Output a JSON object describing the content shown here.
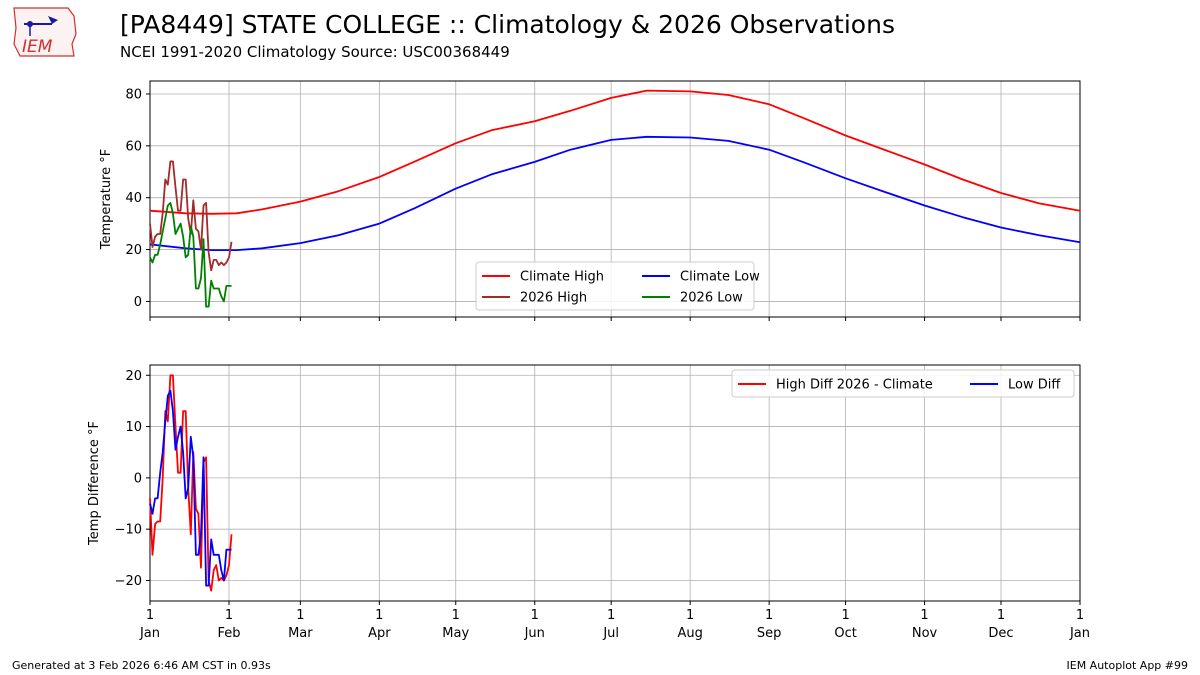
{
  "header": {
    "title": "[PA8449] STATE COLLEGE :: Climatology & 2026 Observations",
    "subtitle": "NCEI 1991-2020 Climatology Source: USC00368449",
    "logo_text": "IEM"
  },
  "footer": {
    "generated": "Generated at 3 Feb 2026 6:46 AM CST in 0.93s",
    "app": "IEM Autoplot App #99"
  },
  "colors": {
    "climate_high": "#ff0000",
    "climate_low": "#0000ff",
    "obs_high": "#a52a2a",
    "obs_low": "#008000",
    "grid": "#b0b0b0"
  },
  "chart_data": [
    {
      "type": "line",
      "ylabel": "Temperature °F",
      "xlim": [
        1,
        366
      ],
      "ylim": [
        -6,
        85
      ],
      "yticks": [
        0,
        20,
        40,
        60,
        80
      ],
      "x_tick_days": [
        1,
        32,
        60,
        91,
        121,
        152,
        182,
        213,
        244,
        274,
        305,
        335,
        366
      ],
      "x_tick_labels": [
        "1\nJan",
        "1\nFeb",
        "1\nMar",
        "1\nApr",
        "1\nMay",
        "1\nJun",
        "1\nJul",
        "1\nAug",
        "1\nSep",
        "1\nOct",
        "1\nNov",
        "1\nDec",
        "1\nJan"
      ],
      "grid": true,
      "legend": {
        "position": "lower-center",
        "columns": 2
      },
      "series": [
        {
          "name": "Climate High",
          "key": "climate_high",
          "x": [
            1,
            15,
            25,
            35,
            45,
            60,
            75,
            91,
            105,
            121,
            135,
            152,
            166,
            182,
            196,
            213,
            228,
            244,
            258,
            274,
            290,
            305,
            320,
            335,
            350,
            366
          ],
          "y": [
            35,
            34,
            33.8,
            34,
            35.5,
            38.5,
            42.5,
            48,
            54,
            61,
            66,
            69.5,
            73.5,
            78.5,
            81.3,
            81,
            79.6,
            76,
            70.5,
            64,
            58.2,
            52.8,
            47,
            41.8,
            37.8,
            35
          ]
        },
        {
          "name": "Climate Low",
          "key": "climate_low",
          "x": [
            1,
            15,
            25,
            35,
            45,
            60,
            75,
            91,
            105,
            121,
            135,
            152,
            166,
            182,
            196,
            213,
            228,
            244,
            258,
            274,
            290,
            305,
            320,
            335,
            350,
            366
          ],
          "y": [
            22,
            20.5,
            19.8,
            19.8,
            20.5,
            22.5,
            25.5,
            30,
            36,
            43.5,
            49,
            53.8,
            58.5,
            62.3,
            63.5,
            63.2,
            61.9,
            58.5,
            53.5,
            47.5,
            42,
            37,
            32.5,
            28.5,
            25.5,
            22.8
          ]
        },
        {
          "name": "2026 High",
          "key": "obs_high",
          "x": [
            1,
            2,
            3,
            4,
            5,
            6,
            7,
            8,
            9,
            10,
            11,
            12,
            13,
            14,
            15,
            16,
            17,
            18,
            19,
            20,
            21,
            22,
            23,
            24,
            25,
            26,
            27,
            28,
            29,
            30,
            31,
            32,
            33
          ],
          "y": [
            30,
            21,
            25,
            26,
            26,
            34,
            47,
            45,
            54,
            54,
            44,
            35,
            35,
            47,
            47,
            32,
            26,
            39,
            28,
            27,
            20,
            37,
            38,
            19,
            12,
            16,
            16,
            14,
            15,
            14,
            15,
            17,
            23
          ]
        },
        {
          "name": "2026 Low",
          "key": "obs_low",
          "x": [
            1,
            2,
            3,
            4,
            5,
            6,
            7,
            8,
            9,
            10,
            11,
            12,
            13,
            14,
            15,
            16,
            17,
            18,
            19,
            20,
            21,
            22,
            23,
            24,
            25,
            26,
            27,
            28,
            29,
            30,
            31,
            32,
            33
          ],
          "y": [
            17,
            15,
            18,
            18,
            22,
            27,
            32,
            37,
            38,
            34,
            26,
            28,
            30,
            25,
            17,
            18,
            29,
            25,
            5,
            5,
            9,
            24,
            -2,
            -2,
            8,
            5,
            5,
            5,
            2,
            0,
            6,
            6,
            6
          ]
        }
      ]
    },
    {
      "type": "line",
      "ylabel": "Temp Difference °F",
      "xlim": [
        1,
        366
      ],
      "ylim": [
        -24,
        22
      ],
      "yticks": [
        -20,
        -10,
        0,
        10,
        20
      ],
      "x_tick_days": [
        1,
        32,
        60,
        91,
        121,
        152,
        182,
        213,
        244,
        274,
        305,
        335,
        366
      ],
      "x_tick_labels": [
        "1\nJan",
        "1\nFeb",
        "1\nMar",
        "1\nApr",
        "1\nMay",
        "1\nJun",
        "1\nJul",
        "1\nAug",
        "1\nSep",
        "1\nOct",
        "1\nNov",
        "1\nDec",
        "1\nJan"
      ],
      "grid": true,
      "legend": {
        "position": "top-right",
        "columns": 2
      },
      "series": [
        {
          "name": "High Diff 2026 - Climate",
          "key": "climate_high",
          "x": [
            1,
            2,
            3,
            4,
            5,
            6,
            7,
            8,
            9,
            10,
            11,
            12,
            13,
            14,
            15,
            16,
            17,
            18,
            19,
            20,
            21,
            22,
            23,
            24,
            25,
            26,
            27,
            28,
            29,
            30,
            31,
            32,
            33
          ],
          "y": [
            -4,
            -15,
            -9,
            -8.5,
            -8.5,
            0,
            13,
            11,
            20,
            20,
            10,
            1,
            1,
            13,
            13,
            -2,
            -11,
            5,
            -6,
            -7,
            -17.5,
            3,
            4,
            -20,
            -22,
            -18,
            -17,
            -20,
            -19.5,
            -20,
            -19,
            -17,
            -11
          ]
        },
        {
          "name": "Low Diff",
          "key": "climate_low",
          "x": [
            1,
            2,
            3,
            4,
            5,
            6,
            7,
            8,
            9,
            10,
            11,
            12,
            13,
            14,
            15,
            16,
            17,
            18,
            19,
            20,
            21,
            22,
            23,
            24,
            25,
            26,
            27,
            28,
            29,
            30,
            31,
            32,
            33
          ],
          "y": [
            -5,
            -7,
            -4,
            -4,
            1,
            5,
            11,
            16,
            17,
            13,
            5.5,
            8,
            10,
            5,
            -4,
            -2,
            8,
            4,
            -15,
            -15,
            -11,
            4,
            -21,
            -21,
            -12,
            -15,
            -15,
            -15,
            -18,
            -20,
            -14,
            -14,
            -14
          ]
        }
      ]
    }
  ]
}
